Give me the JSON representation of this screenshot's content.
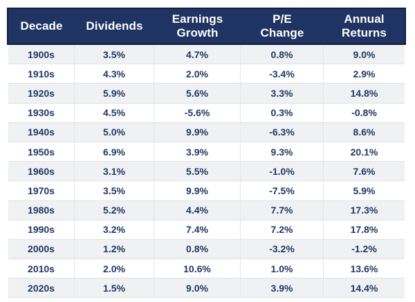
{
  "table": {
    "columns": [
      {
        "key": "decade",
        "label": "Decade"
      },
      {
        "key": "dividends",
        "label": "Dividends"
      },
      {
        "key": "earnings",
        "label": "Earnings\nGrowth"
      },
      {
        "key": "pe",
        "label": "P/E\nChange"
      },
      {
        "key": "returns",
        "label": "Annual\nReturns"
      }
    ],
    "rows": [
      {
        "decade": "1900s",
        "dividends": "3.5%",
        "earnings": "4.7%",
        "pe": "0.8%",
        "returns": "9.0%"
      },
      {
        "decade": "1910s",
        "dividends": "4.3%",
        "earnings": "2.0%",
        "pe": "-3.4%",
        "returns": "2.9%"
      },
      {
        "decade": "1920s",
        "dividends": "5.9%",
        "earnings": "5.6%",
        "pe": "3.3%",
        "returns": "14.8%"
      },
      {
        "decade": "1930s",
        "dividends": "4.5%",
        "earnings": "-5.6%",
        "pe": "0.3%",
        "returns": "-0.8%"
      },
      {
        "decade": "1940s",
        "dividends": "5.0%",
        "earnings": "9.9%",
        "pe": "-6.3%",
        "returns": "8.6%"
      },
      {
        "decade": "1950s",
        "dividends": "6.9%",
        "earnings": "3.9%",
        "pe": "9.3%",
        "returns": "20.1%"
      },
      {
        "decade": "1960s",
        "dividends": "3.1%",
        "earnings": "5.5%",
        "pe": "-1.0%",
        "returns": "7.6%"
      },
      {
        "decade": "1970s",
        "dividends": "3.5%",
        "earnings": "9.9%",
        "pe": "-7.5%",
        "returns": "5.9%"
      },
      {
        "decade": "1980s",
        "dividends": "5.2%",
        "earnings": "4.4%",
        "pe": "7.7%",
        "returns": "17.3%"
      },
      {
        "decade": "1990s",
        "dividends": "3.2%",
        "earnings": "7.4%",
        "pe": "7.2%",
        "returns": "17.8%"
      },
      {
        "decade": "2000s",
        "dividends": "1.2%",
        "earnings": "0.8%",
        "pe": "-3.2%",
        "returns": "-1.2%"
      },
      {
        "decade": "2010s",
        "dividends": "2.0%",
        "earnings": "10.6%",
        "pe": "1.0%",
        "returns": "13.6%"
      },
      {
        "decade": "2020s",
        "dividends": "1.5%",
        "earnings": "9.0%",
        "pe": "3.9%",
        "returns": "14.4%"
      }
    ]
  },
  "colors": {
    "header_bg": "#1f3462",
    "header_border": "#0f1d3d",
    "header_text": "#ffffff",
    "body_text": "#1f3864",
    "alt_row_bg": "#f0f1f3",
    "separator": "#e0e2e6"
  },
  "chart_data": {
    "type": "table",
    "title": "",
    "columns": [
      "Decade",
      "Dividends",
      "Earnings Growth",
      "P/E Change",
      "Annual Returns"
    ],
    "rows": [
      [
        "1900s",
        "3.5%",
        "4.7%",
        "0.8%",
        "9.0%"
      ],
      [
        "1910s",
        "4.3%",
        "2.0%",
        "-3.4%",
        "2.9%"
      ],
      [
        "1920s",
        "5.9%",
        "5.6%",
        "3.3%",
        "14.8%"
      ],
      [
        "1930s",
        "4.5%",
        "-5.6%",
        "0.3%",
        "-0.8%"
      ],
      [
        "1940s",
        "5.0%",
        "9.9%",
        "-6.3%",
        "8.6%"
      ],
      [
        "1950s",
        "6.9%",
        "3.9%",
        "9.3%",
        "20.1%"
      ],
      [
        "1960s",
        "3.1%",
        "5.5%",
        "-1.0%",
        "7.6%"
      ],
      [
        "1970s",
        "3.5%",
        "9.9%",
        "-7.5%",
        "5.9%"
      ],
      [
        "1980s",
        "5.2%",
        "4.4%",
        "7.7%",
        "17.3%"
      ],
      [
        "1990s",
        "3.2%",
        "7.4%",
        "7.2%",
        "17.8%"
      ],
      [
        "2000s",
        "1.2%",
        "0.8%",
        "-3.2%",
        "-1.2%"
      ],
      [
        "2010s",
        "2.0%",
        "10.6%",
        "1.0%",
        "13.6%"
      ],
      [
        "2020s",
        "1.5%",
        "9.0%",
        "3.9%",
        "14.4%"
      ]
    ]
  }
}
